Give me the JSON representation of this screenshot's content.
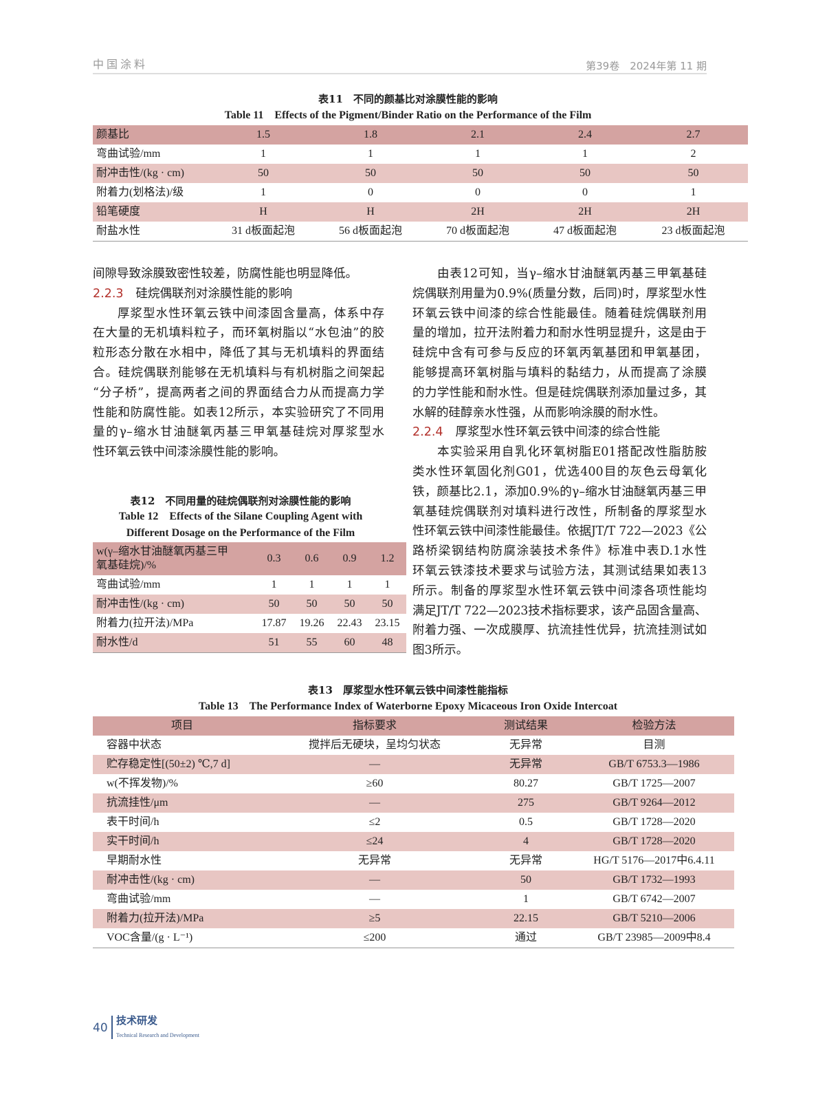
{
  "header": {
    "journal": "中国涂料",
    "issue": "第39卷　2024年第 11 期"
  },
  "table11": {
    "caption_cn": "表11　不同的颜基比对涂膜性能的影响",
    "caption_en": "Table 11　Effects of the Pigment/Binder Ratio on the Performance of the Film",
    "rows": [
      [
        "颜基比",
        "1.5",
        "1.8",
        "2.1",
        "2.4",
        "2.7"
      ],
      [
        "弯曲试验/mm",
        "1",
        "1",
        "1",
        "1",
        "2"
      ],
      [
        "耐冲击性/(kg · cm)",
        "50",
        "50",
        "50",
        "50",
        "50"
      ],
      [
        "附着力(划格法)/级",
        "1",
        "0",
        "0",
        "0",
        "1"
      ],
      [
        "铅笔硬度",
        "H",
        "H",
        "2H",
        "2H",
        "2H"
      ],
      [
        "耐盐水性",
        "31 d板面起泡",
        "56 d板面起泡",
        "70 d板面起泡",
        "47 d板面起泡",
        "23 d板面起泡"
      ]
    ]
  },
  "left_col": {
    "p0": "间隙导致涂膜致密性较差，防腐性能也明显降低。",
    "sec_num": "2.2.3",
    "sec_title": "硅烷偶联剂对涂膜性能的影响",
    "lines": [
      "厚浆型水性环氧云铁中间漆固含量高，体系中存",
      "在大量的无机填料粒子，而环氧树脂以“水包油”的胶",
      "粒形态分散在水相中，降低了其与无机填料的界面结",
      "合。硅烷偶联剂能够在无机填料与有机树脂之间架起",
      "“分子桥”，提高两者之间的界面结合力从而提高力学",
      "性能和防腐性能。如表12所示，本实验研究了不同用",
      "量的γ–缩水甘油醚氧丙基三甲氧基硅烷对厚浆型水",
      "性环氧云铁中间漆涂膜性能的影响。"
    ]
  },
  "right_col": {
    "lines1": [
      "由表12可知，当γ–缩水甘油醚氧丙基三甲氧基硅",
      "烷偶联剂用量为0.9%(质量分数，后同)时，厚浆型水性",
      "环氧云铁中间漆的综合性能最佳。随着硅烷偶联剂用",
      "量的增加，拉开法附着力和耐水性明显提升，这是由于",
      "硅烷中含有可参与反应的环氧丙氧基团和甲氧基团，",
      "能够提高环氧树脂与填料的黏结力，从而提高了涂膜",
      "的力学性能和耐水性。但是硅烷偶联剂添加量过多，其",
      "水解的硅醇亲水性强，从而影响涂膜的耐水性。"
    ],
    "sec_num": "2.2.4",
    "sec_title": "厚浆型水性环氧云铁中间漆的综合性能",
    "lines2": [
      "本实验采用自乳化环氧树脂E01搭配改性脂肪胺",
      "类水性环氧固化剂G01，优选400目的灰色云母氧化",
      "铁，颜基比2.1，添加0.9%的γ–缩水甘油醚氧丙基三甲",
      "氧基硅烷偶联剂对填料进行改性，所制备的厚浆型水",
      "性环氧云铁中间漆性能最佳。依据JT/T 722—2023《公",
      "路桥梁钢结构防腐涂装技术条件》标准中表D.1水性",
      "环氧云铁漆技术要求与试验方法，其测试结果如表13",
      "所示。制备的厚浆型水性环氧云铁中间漆各项性能均",
      "满足JT/T 722—2023技术指标要求，该产品固含量高、",
      "附着力强、一次成膜厚、抗流挂性优异，抗流挂测试如",
      "图3所示。"
    ]
  },
  "table12": {
    "caption_cn": "表12　不同用量的硅烷偶联剂对涂膜性能的影响",
    "caption_en1": "Table 12　Effects of the Silane Coupling Agent with",
    "caption_en2": "Different Dosage on the Performance of the Film",
    "head_label1": "w(γ–缩水甘油醚氧丙基三甲",
    "head_label2": "氧基硅烷)/%",
    "head_values": [
      "0.3",
      "0.6",
      "0.9",
      "1.2"
    ],
    "rows": [
      [
        "弯曲试验/mm",
        "1",
        "1",
        "1",
        "1"
      ],
      [
        "耐冲击性/(kg · cm)",
        "50",
        "50",
        "50",
        "50"
      ],
      [
        "附着力(拉开法)/MPa",
        "17.87",
        "19.26",
        "22.43",
        "23.15"
      ],
      [
        "耐水性/d",
        "51",
        "55",
        "60",
        "48"
      ]
    ]
  },
  "table13": {
    "caption_cn": "表13　厚浆型水性环氧云铁中间漆性能指标",
    "caption_en": "Table 13　The Performance Index of Waterborne Epoxy Micaceous Iron Oxide Intercoat",
    "headers": [
      "项目",
      "指标要求",
      "测试结果",
      "检验方法"
    ],
    "rows": [
      [
        "容器中状态",
        "搅拌后无硬块，呈均匀状态",
        "无异常",
        "目测"
      ],
      [
        "贮存稳定性[(50±2) ℃,7 d]",
        "—",
        "无异常",
        "GB/T 6753.3—1986"
      ],
      [
        "w(不挥发物)/%",
        "≥60",
        "80.27",
        "GB/T 1725—2007"
      ],
      [
        "抗流挂性/μm",
        "—",
        "275",
        "GB/T 9264—2012"
      ],
      [
        "表干时间/h",
        "≤2",
        "0.5",
        "GB/T 1728—2020"
      ],
      [
        "实干时间/h",
        "≤24",
        "4",
        "GB/T 1728—2020"
      ],
      [
        "早期耐水性",
        "无异常",
        "无异常",
        "HG/T 5176—2017中6.4.11"
      ],
      [
        "耐冲击性/(kg · cm)",
        "—",
        "50",
        "GB/T 1732—1993"
      ],
      [
        "弯曲试验/mm",
        "—",
        "1",
        "GB/T 6742—2007"
      ],
      [
        "附着力(拉开法)/MPa",
        "≥5",
        "22.15",
        "GB/T 5210—2006"
      ],
      [
        "VOC含量/(g · L⁻¹)",
        "≤200",
        "通过",
        "GB/T 23985—2009中8.4"
      ]
    ]
  },
  "footer": {
    "page": "40",
    "section_cn": "技术研发",
    "section_en": "Technical Research and Development"
  },
  "colors": {
    "header_row": "#d4a3a1",
    "stripe_row": "#e8c6c3",
    "section_number": "#b3322c",
    "footer": "#3a5a8c"
  }
}
